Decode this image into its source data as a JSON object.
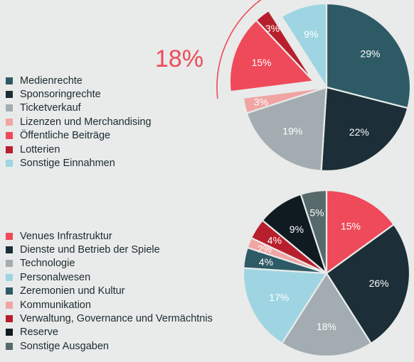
{
  "chart_data": [
    {
      "type": "pie",
      "title": "",
      "highlight": {
        "label": "18%",
        "categories": [
          "Öffentliche Beiträge",
          "Lotterien"
        ]
      },
      "slices": [
        {
          "name": "Medienrechte",
          "value": 29,
          "label": "29%",
          "color": "#2e5a66"
        },
        {
          "name": "Sponsoringrechte",
          "value": 22,
          "label": "22%",
          "color": "#1c2e37"
        },
        {
          "name": "Ticketverkauf",
          "value": 19,
          "label": "19%",
          "color": "#a3adb1"
        },
        {
          "name": "Lizenzen und Merchandising",
          "value": 3,
          "label": "3%",
          "color": "#f0a5a2"
        },
        {
          "name": "Öffentliche Beiträge",
          "value": 15,
          "label": "15%",
          "color": "#ef4a5a"
        },
        {
          "name": "Lotterien",
          "value": 3,
          "label": "3%",
          "color": "#b81f2c"
        },
        {
          "name": "Sonstige Einnahmen",
          "value": 9,
          "label": "9%",
          "color": "#9fd5e2"
        }
      ]
    },
    {
      "type": "pie",
      "title": "",
      "slices": [
        {
          "name": "Venues Infrastruktur",
          "value": 15,
          "label": "15%",
          "color": "#ef4a5a"
        },
        {
          "name": "Dienste und Betrieb der Spiele",
          "value": 26,
          "label": "26%",
          "color": "#1c2e37"
        },
        {
          "name": "Technologie",
          "value": 18,
          "label": "18%",
          "color": "#a3adb1"
        },
        {
          "name": "Personalwesen",
          "value": 17,
          "label": "17%",
          "color": "#9fd5e2"
        },
        {
          "name": "Zeremonien und Kultur",
          "value": 4,
          "label": "4%",
          "color": "#2e5a66"
        },
        {
          "name": "Kommunikation",
          "value": 2,
          "label": "2%",
          "color": "#f0a5a2"
        },
        {
          "name": "Verwaltung, Governance und Vermächtnis",
          "value": 4,
          "label": "4%",
          "color": "#b81f2c"
        },
        {
          "name": "Reserve",
          "value": 9,
          "label": "9%",
          "color": "#101b21"
        },
        {
          "name": "Sonstige Ausgaben",
          "value": 5,
          "label": "5%",
          "color": "#56696b"
        }
      ]
    }
  ]
}
